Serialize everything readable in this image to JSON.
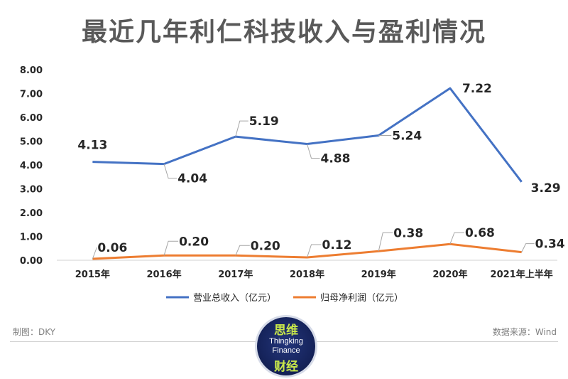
{
  "title": "最近几年利仁科技收入与盈利情况",
  "footer": {
    "left": "制图：DKY",
    "right": "数据来源：Wind"
  },
  "logo": {
    "cn_top": "思维",
    "en_line1": "Thingking",
    "en_line2": "Finance",
    "cn_bottom": "财经"
  },
  "chart_data": {
    "type": "line",
    "categories": [
      "2015年",
      "2016年",
      "2017年",
      "2018年",
      "2019年",
      "2020年",
      "2021年上半年"
    ],
    "series": [
      {
        "name": "营业总收入（亿元）",
        "color": "#4472C4",
        "values": [
          4.13,
          4.04,
          5.19,
          4.88,
          5.24,
          7.22,
          3.29
        ]
      },
      {
        "name": "归母净利润（亿元）",
        "color": "#ED7D31",
        "values": [
          0.06,
          0.2,
          0.2,
          0.12,
          0.38,
          0.68,
          0.34
        ]
      }
    ],
    "y_ticks": [
      "0.00",
      "1.00",
      "2.00",
      "3.00",
      "4.00",
      "5.00",
      "6.00",
      "7.00",
      "8.00"
    ],
    "ylim": [
      0,
      8
    ],
    "grid": false,
    "legend": "bottom"
  }
}
